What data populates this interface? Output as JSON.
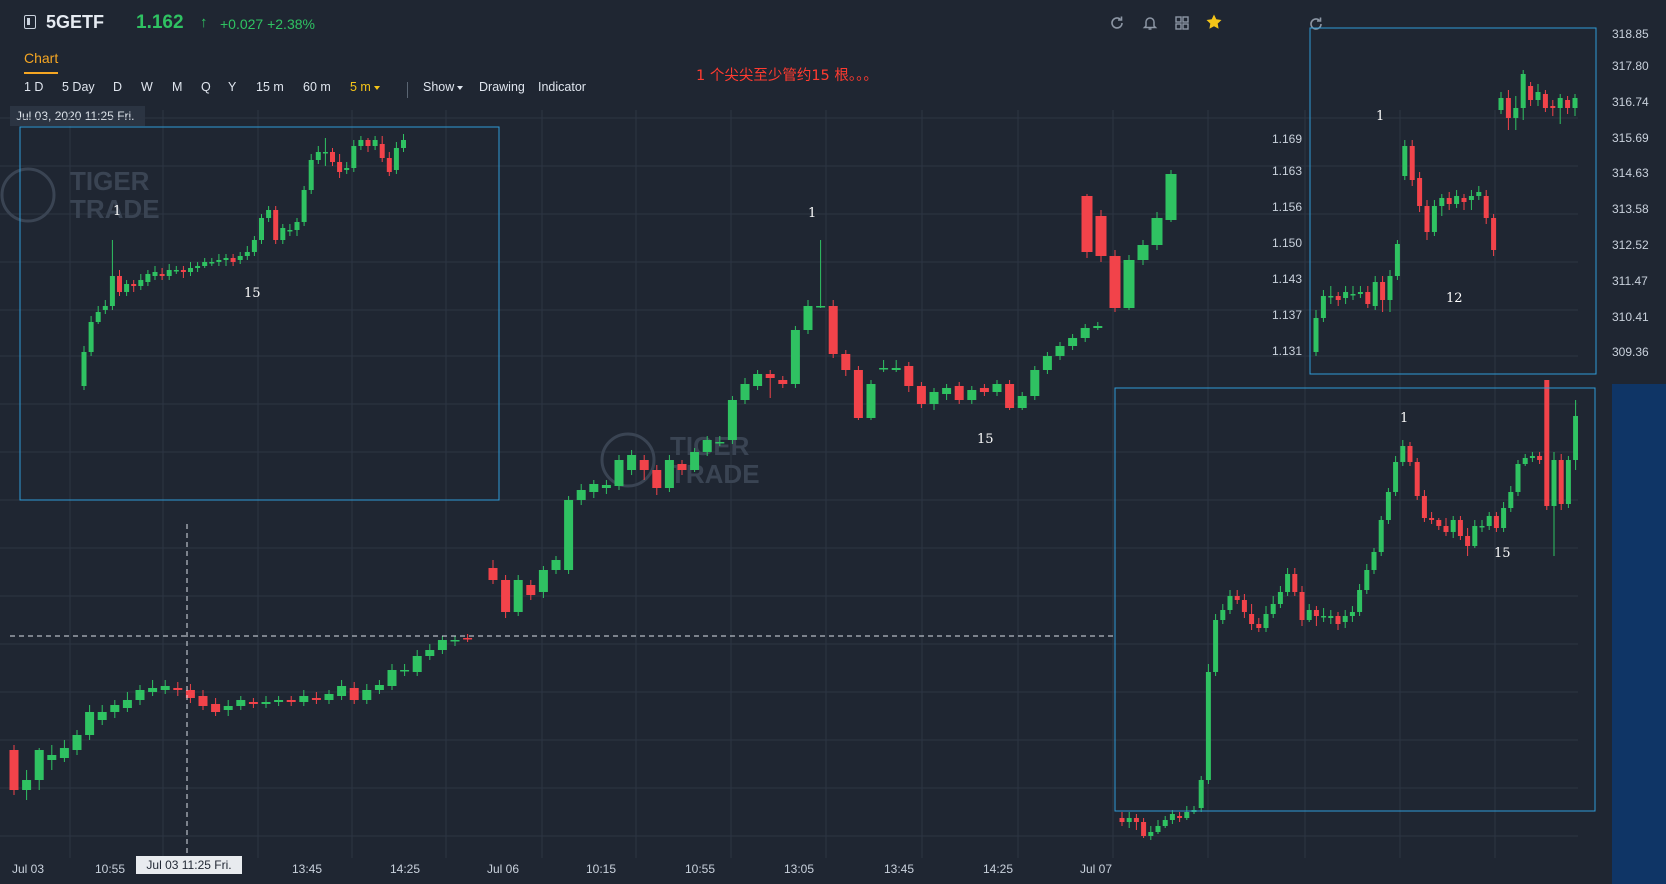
{
  "header": {
    "symbol": "5GETF",
    "price": "1.162",
    "price_arrow": "↑",
    "change": "+0.027 +2.38%",
    "icons": [
      "refresh-icon",
      "bell-icon",
      "grid-icon",
      "star-icon"
    ]
  },
  "tabs": {
    "chart": "Chart"
  },
  "toolbar": {
    "periods": [
      "1 D",
      "5 Day",
      "D",
      "W",
      "M",
      "Q",
      "Y",
      "15 m",
      "60 m",
      "5 m"
    ],
    "active_period": "5 m",
    "show": "Show",
    "drawing": "Drawing",
    "indicator": "Indicator"
  },
  "annotation": "1 个尖尖至少管约15 根。。。",
  "date_label": "Jul 03, 2020 11:25 Fri.",
  "crosshair_label": "Jul 03 11:25 Fri.",
  "x_axis": [
    "Jul 03",
    "10:55",
    "13:45",
    "14:25",
    "Jul 06",
    "10:15",
    "10:55",
    "13:05",
    "13:45",
    "14:25",
    "Jul 07"
  ],
  "main_y_axis": [
    "1.169",
    "1.163",
    "1.156",
    "1.150",
    "1.143",
    "1.137",
    "1.131"
  ],
  "inset_y_axis": [
    "318.85",
    "317.80",
    "316.74",
    "315.69",
    "314.63",
    "313.58",
    "312.52",
    "311.47",
    "310.41",
    "309.36"
  ],
  "markers": {
    "main_1": "1",
    "main_15": "15",
    "inset_a_1": "1",
    "inset_a_15": "15",
    "inset_b_1": "1",
    "inset_b_12": "12",
    "inset_c_1": "1",
    "inset_c_15": "15"
  },
  "watermark": [
    "TIGER",
    "TRADE"
  ],
  "colors": {
    "up": "#2fc262",
    "down": "#f2434a",
    "accent": "#f5a623",
    "box": "#2f9bd6",
    "annotation": "#ff3b30"
  }
}
